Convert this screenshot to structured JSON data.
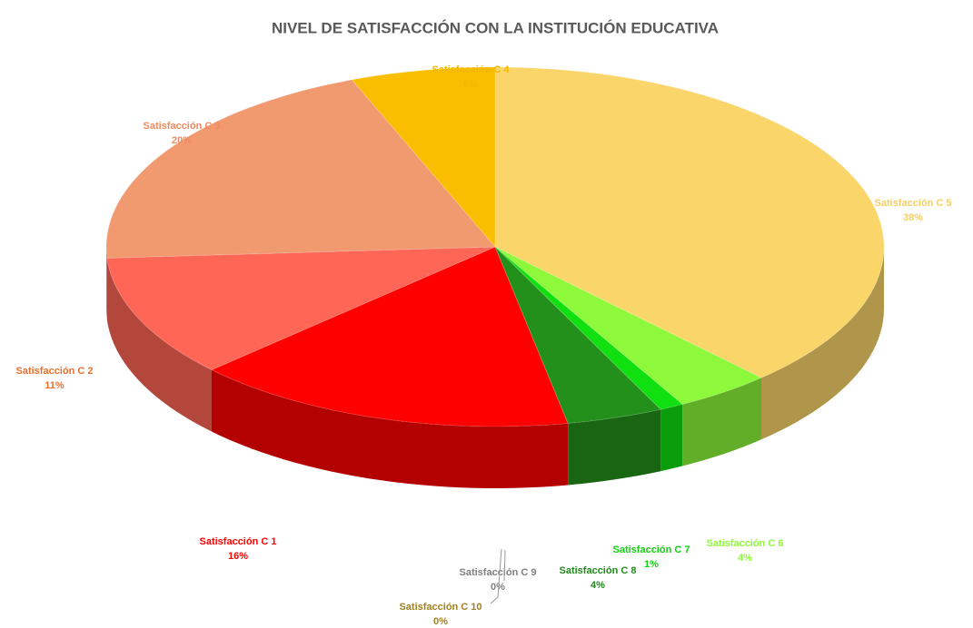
{
  "chart_data": {
    "type": "pie3d",
    "title": "NIVEL DE SATISFACCIÓN CON LA INSTITUCIÓN EDUCATIVA",
    "categories": [
      "Satisfacción C 1",
      "Satisfacción C 2",
      "Satisfacción C 3",
      "Satisfacción C 4",
      "Satisfacción C 5",
      "Satisfacción C 6",
      "Satisfacción C 7",
      "Satisfacción C 8",
      "Satisfacción C 9",
      "Satisfacción C 10"
    ],
    "values": [
      16,
      11,
      20,
      6,
      38,
      4,
      1,
      4,
      0,
      0
    ],
    "value_labels": [
      "16%",
      "11%",
      "20%",
      "6%",
      "38%",
      "4%",
      "1%",
      "4%",
      "0%",
      "0%"
    ],
    "colors": [
      "#ff0000",
      "#ff6655",
      "#f19a70",
      "#f9be00",
      "#fad66a",
      "#8ef83a",
      "#10e010",
      "#22901a",
      "#7f7f7f",
      "#b8a040"
    ]
  }
}
